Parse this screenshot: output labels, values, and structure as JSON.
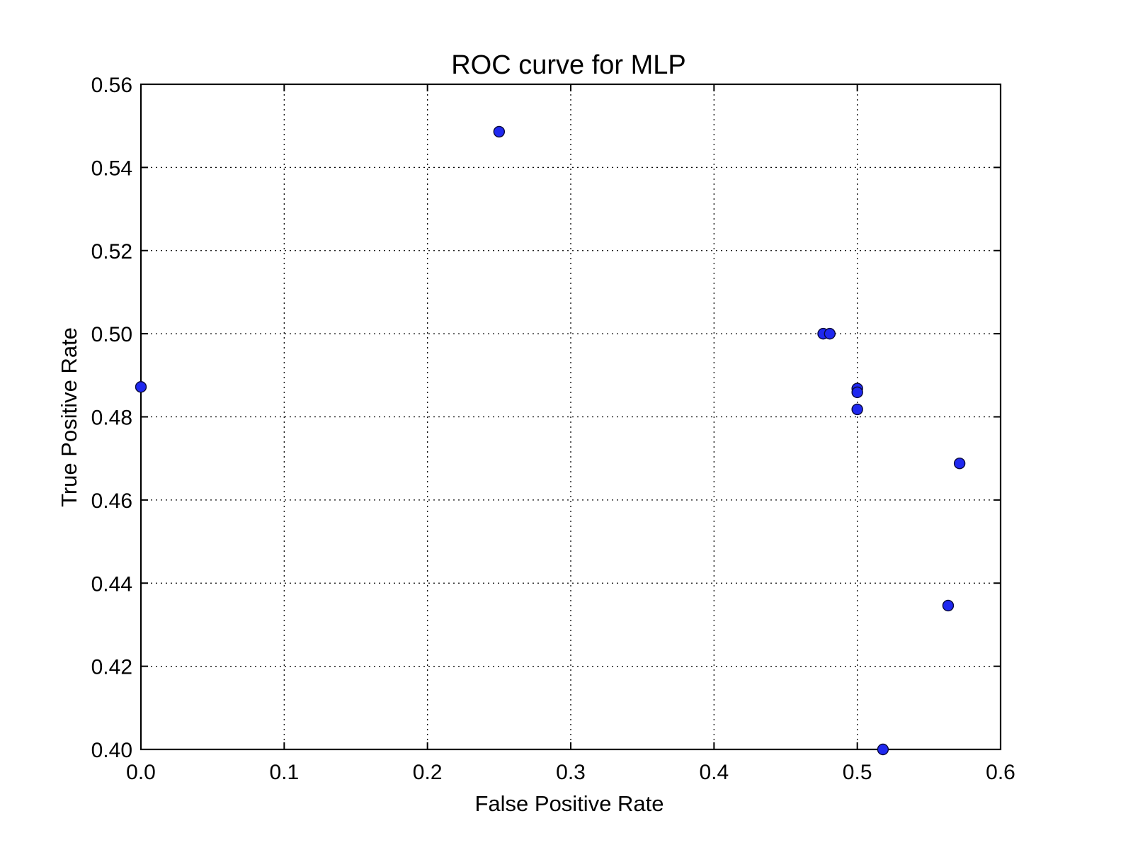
{
  "chart_data": {
    "type": "scatter",
    "title": "ROC curve for MLP",
    "xlabel": "False Positive Rate",
    "ylabel": "True Positive Rate",
    "xlim": [
      0.0,
      0.6
    ],
    "ylim": [
      0.4,
      0.56
    ],
    "xticks": [
      "0.0",
      "0.1",
      "0.2",
      "0.3",
      "0.4",
      "0.5",
      "0.6"
    ],
    "yticks": [
      "0.56",
      "0.54",
      "0.52",
      "0.50",
      "0.48",
      "0.46",
      "0.44",
      "0.42",
      "0.40"
    ],
    "grid": true,
    "marker_color": "#1f28f0",
    "points": [
      {
        "x": 0.0,
        "y": 0.4872
      },
      {
        "x": 0.25,
        "y": 0.5486
      },
      {
        "x": 0.4762,
        "y": 0.5
      },
      {
        "x": 0.4808,
        "y": 0.5
      },
      {
        "x": 0.5,
        "y": 0.4868
      },
      {
        "x": 0.5,
        "y": 0.4859
      },
      {
        "x": 0.5,
        "y": 0.4818
      },
      {
        "x": 0.5714,
        "y": 0.4688
      },
      {
        "x": 0.5634,
        "y": 0.4346
      },
      {
        "x": 0.5179,
        "y": 0.4
      }
    ]
  }
}
